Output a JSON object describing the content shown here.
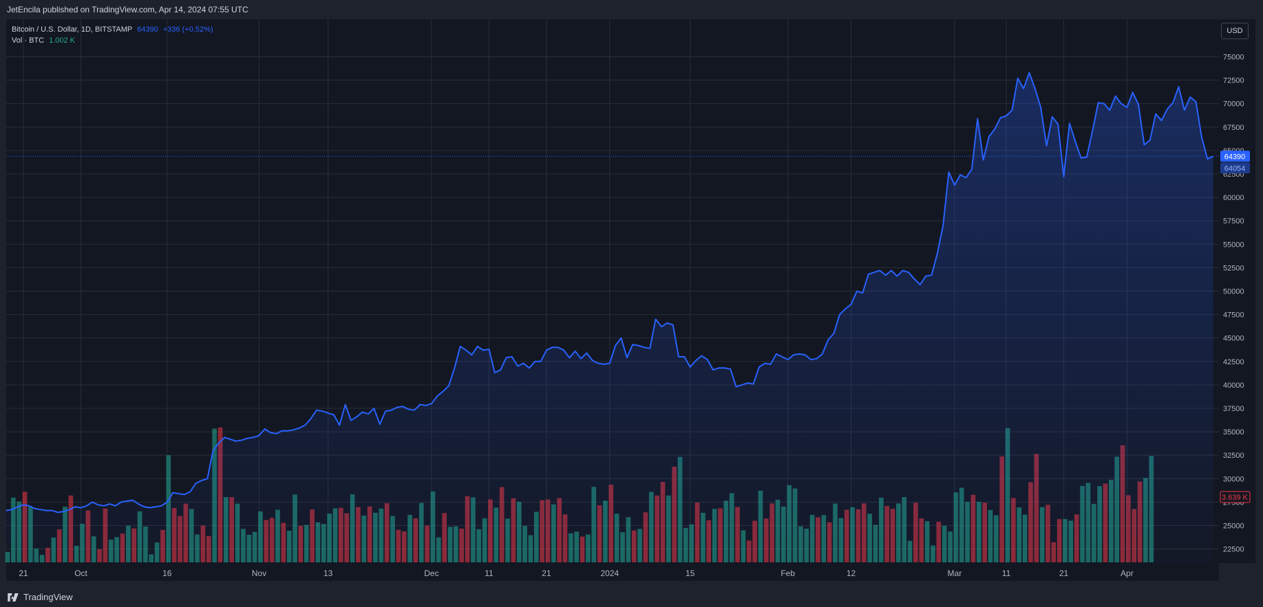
{
  "header": {
    "published": "JetEncila published on TradingView.com, Apr 14, 2024 07:55 UTC"
  },
  "footer": {
    "brand": "TradingView",
    "logo_icon": "tradingview-logo-icon"
  },
  "legend": {
    "title": "Bitcoin / U.S. Dollar, 1D, BITSTAMP",
    "price": "64390",
    "change": "+336 (+0.52%)",
    "vol_label": "Vol · BTC",
    "vol_value": "1.002 K"
  },
  "currency_button": "USD",
  "colors": {
    "line": "#2962ff",
    "up": "#22ab94",
    "down": "#f23645",
    "bg": "#131722",
    "grid": "#2a2e39"
  },
  "chart_data": {
    "type": "line",
    "title": "Bitcoin / U.S. Dollar, 1D, BITSTAMP",
    "y_axis": {
      "ylim": [
        21000,
        79000
      ],
      "ticks": [
        22500,
        25000,
        27500,
        30000,
        32500,
        35000,
        37500,
        40000,
        42500,
        45000,
        47500,
        50000,
        52500,
        55000,
        57500,
        60000,
        62500,
        65000,
        67500,
        70000,
        72500,
        75000
      ]
    },
    "x_ticks": [
      {
        "label": "21",
        "index": 3
      },
      {
        "label": "Oct",
        "index": 13
      },
      {
        "label": "16",
        "index": 28
      },
      {
        "label": "Nov",
        "index": 44
      },
      {
        "label": "13",
        "index": 56
      },
      {
        "label": "Dec",
        "index": 74
      },
      {
        "label": "11",
        "index": 84
      },
      {
        "label": "21",
        "index": 94
      },
      {
        "label": "2024",
        "index": 105
      },
      {
        "label": "15",
        "index": 119
      },
      {
        "label": "Feb",
        "index": 136
      },
      {
        "label": "12",
        "index": 147
      },
      {
        "label": "Mar",
        "index": 165
      },
      {
        "label": "11",
        "index": 174
      },
      {
        "label": "21",
        "index": 184
      },
      {
        "label": "Apr",
        "index": 195
      }
    ],
    "last_price_label": "64390",
    "secondary_price_label": "64054",
    "volume_label": "3.639 K",
    "price_series": [
      26600,
      26700,
      27000,
      27200,
      27100,
      26800,
      26700,
      26600,
      26600,
      26400,
      26500,
      26700,
      27000,
      26900,
      27100,
      27500,
      27200,
      27100,
      27300,
      27100,
      27500,
      27600,
      27700,
      27300,
      27000,
      26900,
      27000,
      27100,
      27500,
      28500,
      28400,
      28300,
      28600,
      29500,
      29800,
      30000,
      33000,
      33800,
      34400,
      34200,
      34000,
      34100,
      34300,
      34400,
      34600,
      35300,
      34900,
      34800,
      35100,
      35100,
      35200,
      35400,
      35700,
      36400,
      37300,
      37200,
      37000,
      36800,
      35700,
      37900,
      36200,
      36600,
      37100,
      36900,
      37500,
      35800,
      37200,
      37300,
      37600,
      37700,
      37400,
      37300,
      37900,
      37800,
      38000,
      38800,
      39300,
      39900,
      41800,
      44100,
      43700,
      43200,
      44100,
      43700,
      43800,
      41300,
      41600,
      42900,
      43000,
      42000,
      42300,
      41800,
      42500,
      42500,
      43700,
      44000,
      44000,
      43700,
      42900,
      43600,
      42800,
      43400,
      42600,
      42300,
      42200,
      42300,
      44200,
      45000,
      42900,
      44300,
      44200,
      44000,
      43900,
      47000,
      46200,
      46600,
      46400,
      43000,
      43000,
      41900,
      42600,
      43100,
      42700,
      41600,
      41800,
      41800,
      41700,
      39800,
      40000,
      40200,
      40100,
      41900,
      42300,
      42200,
      43300,
      43000,
      42700,
      43200,
      43300,
      43200,
      42700,
      42800,
      43300,
      44800,
      45500,
      47500,
      48100,
      48600,
      50000,
      49800,
      51800,
      52000,
      52200,
      51700,
      52200,
      51600,
      52200,
      52000,
      51300,
      50700,
      51600,
      51700,
      54000,
      57000,
      62700,
      61300,
      62400,
      62100,
      63000,
      68400,
      64000,
      66500,
      67300,
      68500,
      68700,
      69300,
      72700,
      71600,
      73300,
      71600,
      69600,
      65500,
      68600,
      67800,
      62200,
      67900,
      66000,
      64200,
      64300,
      67100,
      70100,
      70000,
      69300,
      70800,
      70000,
      69600,
      71200,
      69900,
      65600,
      66100,
      68900,
      68200,
      69400,
      70100,
      71800,
      69300,
      70700,
      70200,
      66400,
      64100,
      64390
    ],
    "volume_series": [
      0.44,
      2.77,
      2.6,
      3.02,
      2.38,
      0.59,
      0.32,
      0.62,
      1.06,
      1.41,
      2.38,
      2.86,
      0.71,
      1.65,
      2.22,
      1.11,
      0.56,
      2.3,
      0.97,
      1.08,
      1.23,
      1.57,
      1.45,
      2.18,
      1.53,
      0.34,
      0.85,
      1.39,
      4.58,
      2.33,
      1.98,
      2.51,
      2.28,
      1.19,
      1.57,
      1.12,
      5.72,
      5.77,
      2.79,
      2.79,
      2.51,
      1.43,
      1.18,
      1.3,
      2.18,
      1.81,
      1.9,
      2.25,
      1.69,
      1.35,
      2.9,
      1.56,
      1.6,
      2.26,
      1.71,
      1.64,
      2.08,
      2.31,
      2.33,
      2.1,
      2.91,
      2.36,
      2.0,
      2.39,
      2.12,
      2.3,
      2.53,
      1.98,
      1.39,
      1.32,
      2.03,
      1.88,
      2.54,
      1.57,
      3.03,
      1.07,
      2.11,
      1.52,
      1.54,
      1.44,
      2.83,
      2.78,
      1.42,
      1.88,
      2.69,
      2.34,
      3.22,
      1.87,
      2.74,
      2.59,
      1.56,
      1.16,
      2.16,
      2.66,
      2.69,
      2.48,
      2.75,
      2.05,
      1.24,
      1.31,
      1.1,
      1.19,
      3.23,
      2.44,
      2.64,
      3.32,
      2.08,
      1.29,
      1.93,
      1.36,
      1.43,
      2.14,
      3.01,
      2.86,
      3.44,
      2.86,
      4.09,
      4.51,
      1.47,
      1.62,
      2.56,
      2.12,
      1.8,
      2.29,
      2.31,
      2.64,
      2.96,
      2.37,
      1.37,
      0.93,
      1.78,
      3.06,
      1.87,
      2.52,
      2.68,
      2.39,
      3.3,
      3.16,
      1.54,
      1.44,
      2.03,
      1.93,
      2.02,
      1.71,
      2.51,
      1.89,
      2.25,
      2.36,
      2.27,
      2.52,
      2.08,
      1.6,
      2.77,
      2.41,
      2.29,
      2.52,
      2.79,
      0.92,
      2.55,
      1.88,
      1.76,
      0.72,
      1.74,
      1.56,
      1.32,
      2.99,
      3.19,
      2.59,
      2.89,
      2.59,
      2.55,
      2.24,
      2.01,
      4.53,
      5.74,
      2.75,
      2.35,
      2.04,
      3.43,
      4.64,
      2.36,
      2.46,
      0.86,
      1.85,
      1.85,
      1.78,
      2.05,
      3.27,
      3.4,
      2.5,
      3.26,
      3.37,
      3.53,
      4.52,
      5.01,
      2.87,
      2.28,
      3.46,
      3.61,
      4.55
    ],
    "volume_up": [
      true,
      true,
      true,
      false,
      true,
      true,
      true,
      false,
      true,
      false,
      true,
      false,
      true,
      true,
      false,
      true,
      false,
      false,
      true,
      true,
      false,
      true,
      false,
      true,
      true,
      true,
      true,
      false,
      true,
      false,
      false,
      false,
      true,
      true,
      false,
      false,
      true,
      false,
      true,
      false,
      true,
      true,
      true,
      true,
      true,
      false,
      false,
      true,
      false,
      true,
      true,
      false,
      true,
      false,
      true,
      true,
      true,
      true,
      false,
      false,
      true,
      false,
      true,
      false,
      true,
      true,
      false,
      true,
      false,
      false,
      true,
      false,
      true,
      false,
      true,
      true,
      false,
      true,
      true,
      false,
      false,
      true,
      true,
      true,
      false,
      true,
      false,
      true,
      false,
      true,
      true,
      true,
      true,
      false,
      false,
      true,
      false,
      false,
      true,
      true,
      false,
      true,
      true,
      false,
      true,
      false,
      true,
      true,
      true,
      false,
      true,
      false,
      true,
      false,
      false,
      true,
      false,
      true,
      true,
      true,
      false,
      true,
      false,
      true,
      false,
      true,
      true,
      false,
      true,
      false,
      false,
      true,
      false,
      false,
      true,
      true,
      true,
      true,
      true,
      true,
      true,
      false,
      true,
      false,
      true,
      true,
      false,
      true,
      false,
      false,
      true,
      true,
      true,
      false,
      false,
      true,
      true,
      true,
      false,
      false,
      true,
      true,
      false,
      true,
      true,
      true,
      true,
      true,
      false,
      true,
      false,
      true,
      true,
      false,
      true,
      false,
      true,
      true,
      false,
      false,
      true,
      false,
      false,
      false,
      true,
      true,
      false,
      true,
      true,
      true,
      true,
      false,
      true,
      true,
      false,
      false,
      false,
      false,
      true,
      true,
      false,
      false,
      false,
      false
    ]
  }
}
